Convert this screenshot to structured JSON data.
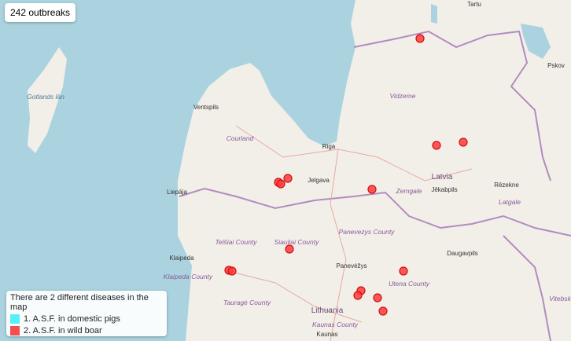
{
  "map": {
    "count_label": "242 outbreaks",
    "labels": [
      "Tartu",
      "Pskov",
      "Gotlands län",
      "Ventspils",
      "Vidzeme",
      "Courland",
      "Riga",
      "Latvia",
      "Jelgava",
      "Liepāja",
      "Zemgale",
      "Jēkabpils",
      "Rēzekne",
      "Latgale",
      "Telšiai County",
      "Siauliai County",
      "Panevezys County",
      "Klaipeda",
      "Klaipeda County",
      "Panevėžys",
      "Daugavpils",
      "Utena County",
      "Vitebsk",
      "Tauragė County",
      "Lithuania",
      "Kaunas County",
      "Kaunas"
    ]
  },
  "legend": {
    "title": "There are 2 different diseases in the map",
    "items": [
      "1. A.S.F. in domestic pigs",
      "2. A.S.F. in wild boar"
    ]
  }
}
